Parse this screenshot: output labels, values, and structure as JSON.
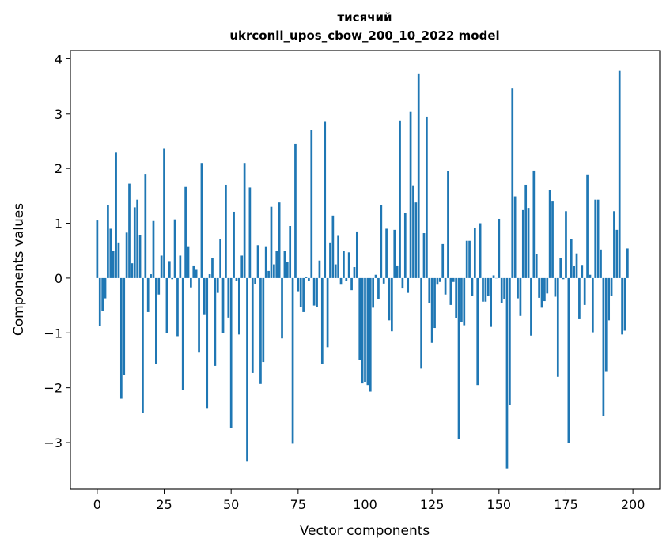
{
  "chart_data": {
    "type": "bar",
    "title_line1": "тисячий",
    "title_line2": "ukrconll_upos_cbow_200_10_2022 model",
    "xlabel": "Vector components",
    "ylabel": "Components values",
    "xlim": [
      -10,
      210
    ],
    "ylim": [
      -3.85,
      4.15
    ],
    "xticks": [
      0,
      25,
      50,
      75,
      100,
      125,
      150,
      175,
      200
    ],
    "yticks": [
      -3,
      -2,
      -1,
      0,
      1,
      2,
      3,
      4
    ],
    "bar_color": "#1f77b4",
    "grid": false,
    "values": [
      1.05,
      -0.88,
      -0.6,
      -0.37,
      1.33,
      0.9,
      0.5,
      2.3,
      0.65,
      -2.2,
      -1.76,
      0.83,
      1.72,
      0.27,
      1.29,
      1.43,
      0.79,
      -2.46,
      1.9,
      -0.62,
      0.07,
      1.04,
      -1.57,
      -0.3,
      0.41,
      2.37,
      -1.0,
      0.31,
      -0.02,
      1.07,
      -1.06,
      0.41,
      -2.04,
      1.66,
      0.58,
      -0.17,
      0.23,
      0.15,
      -1.36,
      2.1,
      -0.66,
      -2.37,
      0.07,
      0.37,
      -1.6,
      -0.27,
      0.71,
      -1.0,
      1.7,
      -0.72,
      -2.74,
      1.21,
      -0.05,
      -1.03,
      0.41,
      2.1,
      -3.35,
      1.65,
      -1.73,
      -0.11,
      0.6,
      -1.93,
      -1.53,
      0.58,
      0.13,
      1.3,
      0.25,
      0.49,
      1.38,
      -1.1,
      0.49,
      0.29,
      0.95,
      -3.02,
      2.45,
      -0.24,
      -0.53,
      -0.62,
      0.02,
      -0.05,
      2.7,
      -0.5,
      -0.52,
      0.32,
      -1.56,
      2.86,
      -1.26,
      0.65,
      1.14,
      0.25,
      0.77,
      -0.12,
      0.5,
      -0.05,
      0.47,
      -0.22,
      0.2,
      0.85,
      -1.49,
      -1.92,
      -1.89,
      -1.95,
      -2.07,
      -0.54,
      0.06,
      -0.39,
      1.33,
      -0.1,
      0.9,
      -0.77,
      -0.97,
      0.88,
      0.23,
      2.87,
      -0.19,
      1.19,
      -0.27,
      3.03,
      1.69,
      1.38,
      3.72,
      -1.65,
      0.82,
      2.94,
      -0.45,
      -1.18,
      -0.91,
      -0.12,
      -0.07,
      0.62,
      -0.3,
      1.95,
      -0.49,
      -0.07,
      -0.73,
      -2.93,
      -0.8,
      -0.86,
      0.68,
      0.68,
      -0.32,
      0.91,
      -1.95,
      1.0,
      -0.43,
      -0.43,
      -0.32,
      -0.89,
      0.05,
      0.0,
      1.08,
      -0.45,
      -0.38,
      -3.47,
      -2.31,
      3.47,
      1.49,
      -0.37,
      -0.69,
      1.24,
      1.7,
      1.28,
      -1.05,
      1.96,
      0.44,
      -0.36,
      -0.54,
      -0.42,
      -0.28,
      1.6,
      1.41,
      -0.34,
      -1.8,
      0.37,
      -0.02,
      1.22,
      -3.0,
      0.71,
      0.22,
      0.45,
      -0.75,
      0.24,
      -0.49,
      1.89,
      0.06,
      -0.99,
      1.43,
      1.43,
      0.52,
      -2.52,
      -1.71,
      -0.77,
      -0.32,
      1.22,
      0.88,
      3.78,
      -1.03,
      -0.96,
      0.54
    ]
  }
}
